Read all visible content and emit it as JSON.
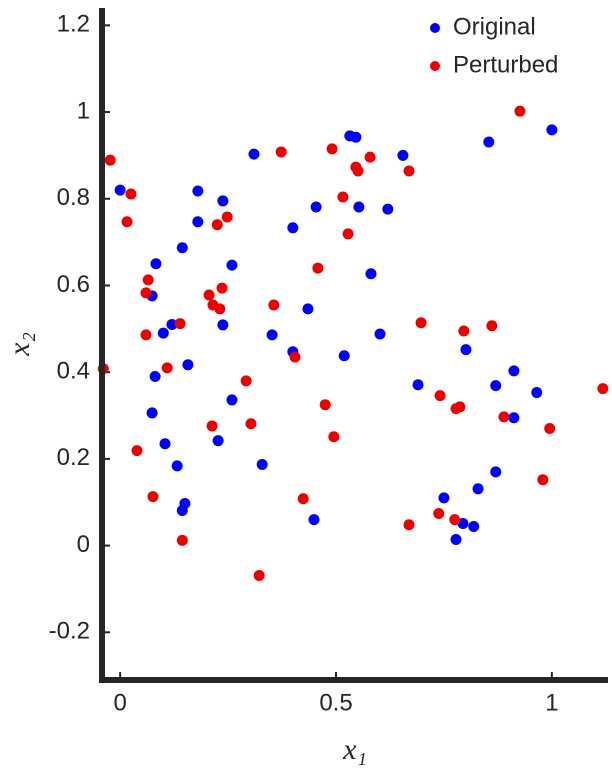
{
  "chart_data": {
    "type": "scatter",
    "xlabel": "x₁",
    "ylabel": "x₂",
    "xlim": [
      -0.042,
      1.13
    ],
    "ylim": [
      -0.31,
      1.24
    ],
    "xticks": [
      0,
      0.5,
      1
    ],
    "yticks": [
      -0.2,
      0,
      0.2,
      0.4,
      0.6,
      0.8,
      1,
      1.2
    ],
    "legend": "northeast",
    "series": [
      {
        "name": "Original",
        "color": "#0000ff",
        "x": [
          0.0,
          0.083,
          0.074,
          0.1,
          0.081,
          0.074,
          0.104,
          0.132,
          0.15,
          0.144,
          0.12,
          0.144,
          0.18,
          0.18,
          0.157,
          0.238,
          0.227,
          0.259,
          0.238,
          0.259,
          0.329,
          0.31,
          0.352,
          0.4,
          0.4,
          0.435,
          0.454,
          0.449,
          0.519,
          0.532,
          0.546,
          0.553,
          0.581,
          0.602,
          0.62,
          0.655,
          0.69,
          0.75,
          0.778,
          0.794,
          0.801,
          0.819,
          0.829,
          0.854,
          0.87,
          0.87,
          0.912,
          0.912,
          0.965,
          1.0
        ],
        "y": [
          0.82,
          0.65,
          0.576,
          0.49,
          0.39,
          0.306,
          0.235,
          0.184,
          0.097,
          0.081,
          0.51,
          0.687,
          0.818,
          0.747,
          0.417,
          0.509,
          0.242,
          0.336,
          0.795,
          0.647,
          0.187,
          0.903,
          0.486,
          0.447,
          0.733,
          0.546,
          0.781,
          0.06,
          0.438,
          0.945,
          0.942,
          0.781,
          0.627,
          0.488,
          0.776,
          0.9,
          0.371,
          0.11,
          0.014,
          0.051,
          0.452,
          0.044,
          0.131,
          0.931,
          0.369,
          0.17,
          0.403,
          0.295,
          0.353,
          0.959
        ]
      },
      {
        "name": "Perturbed",
        "color": "#ee0000",
        "x": [
          -0.023,
          0.025,
          0.016,
          -0.039,
          0.039,
          0.065,
          0.06,
          0.06,
          0.076,
          0.109,
          0.139,
          0.144,
          0.206,
          0.215,
          0.231,
          0.236,
          0.225,
          0.248,
          0.213,
          0.292,
          0.303,
          0.322,
          0.356,
          0.373,
          0.405,
          0.424,
          0.458,
          0.475,
          0.491,
          0.495,
          0.516,
          0.528,
          0.546,
          0.551,
          0.579,
          0.669,
          0.669,
          0.697,
          0.741,
          0.738,
          0.778,
          0.787,
          0.775,
          0.796,
          0.861,
          0.889,
          0.926,
          0.995,
          0.979,
          1.118
        ],
        "y": [
          0.889,
          0.811,
          0.747,
          0.408,
          0.219,
          0.613,
          0.583,
          0.486,
          0.113,
          0.41,
          0.512,
          0.012,
          0.578,
          0.555,
          0.546,
          0.594,
          0.74,
          0.758,
          0.276,
          0.38,
          0.281,
          -0.069,
          0.555,
          0.908,
          0.435,
          0.108,
          0.64,
          0.325,
          0.915,
          0.251,
          0.804,
          0.719,
          0.873,
          0.864,
          0.896,
          0.864,
          0.048,
          0.514,
          0.346,
          0.074,
          0.316,
          0.32,
          0.06,
          0.495,
          0.507,
          0.297,
          1.002,
          0.27,
          0.152,
          0.362
        ]
      }
    ]
  }
}
